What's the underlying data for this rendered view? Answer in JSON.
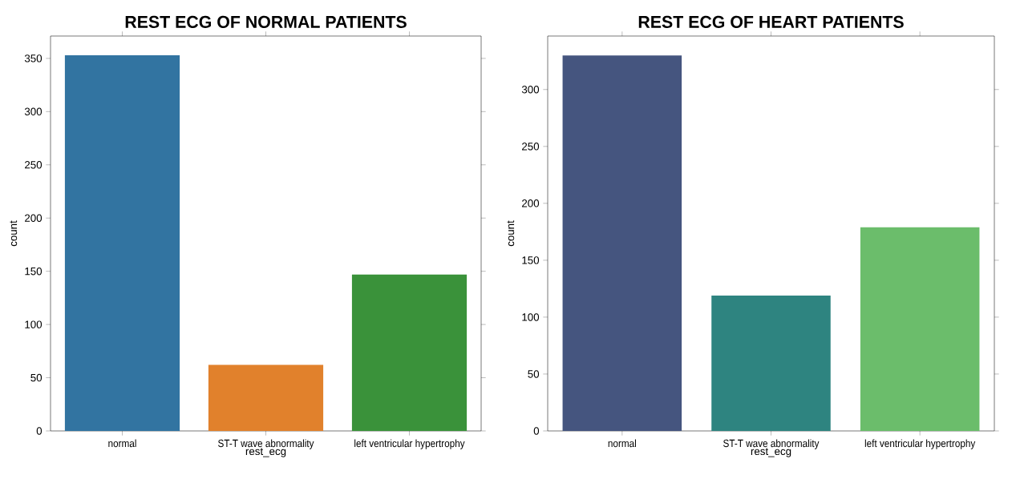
{
  "chart_data": [
    {
      "type": "bar",
      "title": "REST ECG OF NORMAL PATIENTS",
      "xlabel": "rest_ecg",
      "ylabel": "count",
      "categories": [
        "normal",
        "ST-T wave abnormality",
        "left ventricular hypertrophy"
      ],
      "values": [
        353,
        62,
        147
      ],
      "colors": [
        "#3274a1",
        "#e1812c",
        "#3a923a"
      ],
      "ylim": [
        0,
        371
      ],
      "yticks": [
        0,
        50,
        100,
        150,
        200,
        250,
        300,
        350
      ]
    },
    {
      "type": "bar",
      "title": "REST ECG OF HEART PATIENTS",
      "xlabel": "rest_ecg",
      "ylabel": "count",
      "categories": [
        "normal",
        "ST-T wave abnormality",
        "left ventricular hypertrophy"
      ],
      "values": [
        330,
        119,
        179
      ],
      "colors": [
        "#45557f",
        "#2e8480",
        "#6bbd6b"
      ],
      "ylim": [
        0,
        347
      ],
      "yticks": [
        0,
        50,
        100,
        150,
        200,
        250,
        300
      ]
    }
  ]
}
